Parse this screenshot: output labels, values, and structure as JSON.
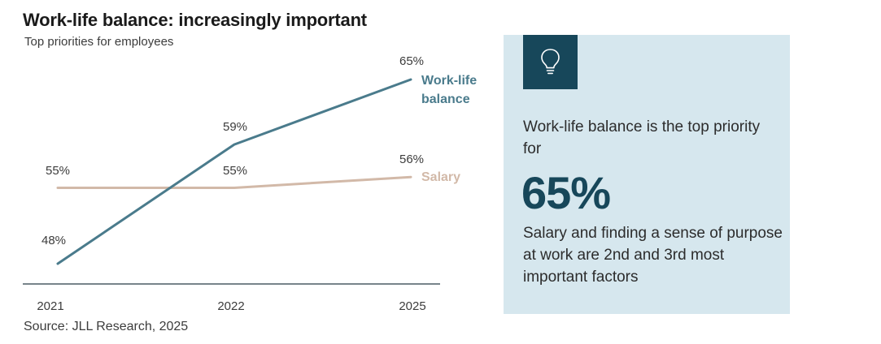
{
  "chart_data": {
    "type": "line",
    "title": "Work-life balance: increasingly important",
    "subtitle": "Top priorities for employees",
    "categories": [
      "2021",
      "2022",
      "2025"
    ],
    "series": [
      {
        "name": "Work-life balance",
        "label_lines": [
          "Work-life",
          "balance"
        ],
        "values": [
          48,
          59,
          65
        ],
        "value_labels": [
          "48%",
          "59%",
          "65%"
        ],
        "color": "#4a7b8c"
      },
      {
        "name": "Salary",
        "label_lines": [
          "Salary"
        ],
        "values": [
          55,
          55,
          56
        ],
        "value_labels": [
          "55%",
          "55%",
          "56%"
        ],
        "color": "#d2b9a8"
      }
    ],
    "ylim": [
      40,
      70
    ],
    "grid": false,
    "xlabel": "",
    "ylabel": ""
  },
  "source": "Source: JLL Research, 2025",
  "callout": {
    "icon": "lightbulb-icon",
    "intro": "Work-life balance is the top priority for",
    "big_value": "65%",
    "note": "Salary and finding a sense of purpose at work are 2nd and 3rd most important factors"
  },
  "colors": {
    "panel_bg": "#d6e7ee",
    "accent_dark": "#17475a",
    "axis": "#4a5b63",
    "label_text": "#3c3c3c"
  }
}
